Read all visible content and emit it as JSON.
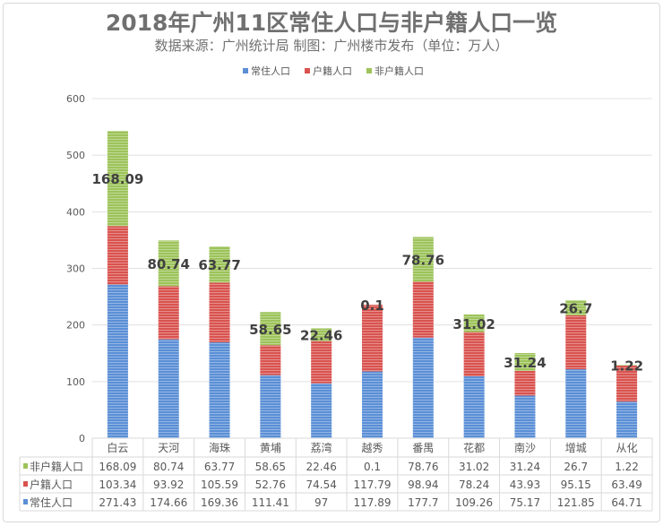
{
  "chart_data": {
    "type": "bar",
    "stacked": true,
    "title": "2018年广州11区常住人口与非户籍人口一览",
    "subtitle": "数据来源：广州统计局 制图：广州楼市发布（单位：万人）",
    "categories": [
      "白云",
      "天河",
      "海珠",
      "黄埔",
      "荔湾",
      "越秀",
      "番禺",
      "花都",
      "南沙",
      "增城",
      "从化"
    ],
    "series": [
      {
        "name": "常住人口",
        "color": "#5b8fd6",
        "values": [
          271.43,
          174.66,
          169.36,
          111.41,
          97,
          117.89,
          177.7,
          109.26,
          75.17,
          121.85,
          64.71
        ]
      },
      {
        "name": "户籍人口",
        "color": "#d9534f",
        "values": [
          103.34,
          93.92,
          105.59,
          52.76,
          74.54,
          117.79,
          98.94,
          78.24,
          43.93,
          95.15,
          63.49
        ]
      },
      {
        "name": "非户籍人口",
        "color": "#9dc35a",
        "values": [
          168.09,
          80.74,
          63.77,
          58.65,
          22.46,
          0.1,
          78.76,
          31.02,
          31.24,
          26.7,
          1.22
        ]
      }
    ],
    "data_labels_series": "非户籍人口",
    "ylim": [
      0,
      600
    ],
    "yticks": [
      0,
      100,
      200,
      300,
      400,
      500,
      600
    ],
    "legend": "top",
    "grid": true,
    "data_table": true
  }
}
